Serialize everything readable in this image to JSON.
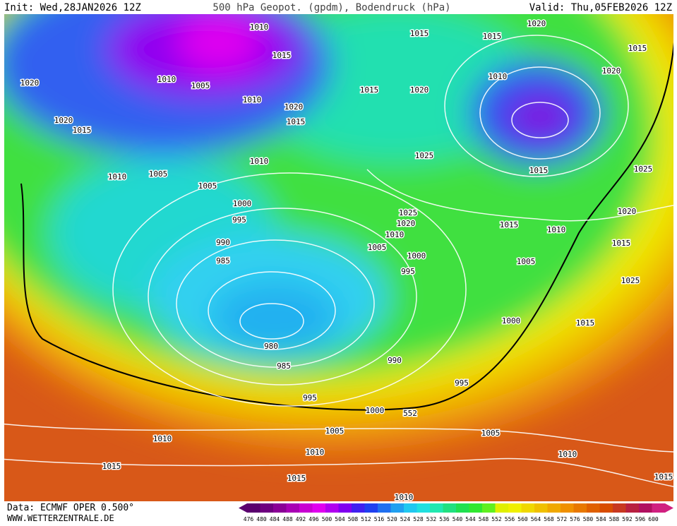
{
  "header": {
    "init": "Init: Wed,28JAN2026 12Z",
    "title": "500 hPa Geopot. (gpdm), Bodendruck (hPa)",
    "valid": "Valid: Thu,05FEB2026 12Z"
  },
  "isobar_labels": [
    "1010",
    "1015",
    "1020",
    "1015",
    "1015",
    "1015",
    "1010",
    "1005",
    "1010",
    "1020",
    "1020",
    "1015",
    "1020",
    "1010",
    "1020",
    "1020",
    "1015",
    "1015",
    "1025",
    "1010",
    "1005",
    "1010",
    "1015",
    "1025",
    "1005",
    "1000",
    "1025",
    "1020",
    "995",
    "1020",
    "1015",
    "1010",
    "1010",
    "990",
    "1005",
    "1015",
    "1000",
    "1005",
    "985",
    "995",
    "1025",
    "1000",
    "1015",
    "980",
    "990",
    "985",
    "995",
    "995",
    "1000",
    "552",
    "1005",
    "1005",
    "1010",
    "1010",
    "1010",
    "1015",
    "1015",
    "1015",
    "1010"
  ],
  "colorbar": {
    "labels": [
      476,
      480,
      484,
      488,
      492,
      496,
      500,
      504,
      508,
      512,
      516,
      520,
      524,
      528,
      532,
      536,
      540,
      544,
      548,
      552,
      556,
      560,
      564,
      568,
      572,
      576,
      580,
      584,
      588,
      592,
      596,
      600
    ],
    "colors": [
      "#5a006e",
      "#6e0080",
      "#8a0096",
      "#a800b4",
      "#c800d2",
      "#e000f0",
      "#b000f0",
      "#8000f0",
      "#4020f0",
      "#2040f0",
      "#2070f0",
      "#20a0f0",
      "#20c8f0",
      "#20e0e0",
      "#20e8b0",
      "#20e080",
      "#20e050",
      "#30e830",
      "#60f020",
      "#e0f000",
      "#f0f000",
      "#f0d800",
      "#f0c000",
      "#f0a800",
      "#f09000",
      "#e87800",
      "#e06000",
      "#d84c00",
      "#c83820",
      "#b82040",
      "#b01060",
      "#d02080"
    ]
  },
  "footer": {
    "source": "Data: ECMWF OPER 0.500°",
    "site": "WWW.WETTERZENTRALE.DE"
  }
}
